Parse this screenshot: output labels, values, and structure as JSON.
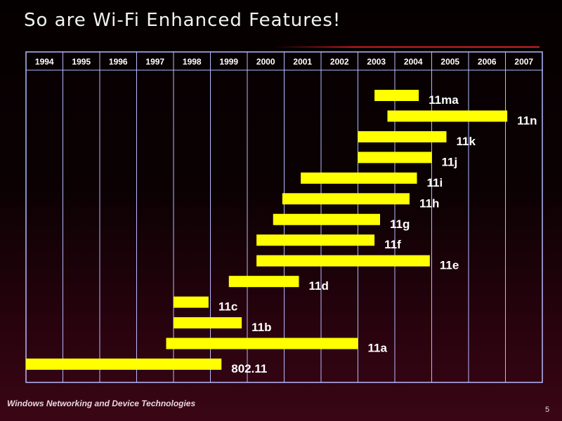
{
  "slide": {
    "title": "So are Wi-Fi Enhanced Features!",
    "footer": "Windows Networking and Device Technologies",
    "slide_number": "5"
  },
  "colors": {
    "bar": "#ffff00",
    "grid": "#b8b8ff",
    "accent": "#c81a1a"
  },
  "chart_data": {
    "type": "bar",
    "orientation": "horizontal-timeline",
    "years": [
      "1994",
      "1995",
      "1996",
      "1997",
      "1998",
      "1999",
      "2000",
      "2001",
      "2002",
      "2003",
      "2004",
      "2005",
      "2006",
      "2007"
    ],
    "xlim": [
      1994,
      2008
    ],
    "grid": true,
    "series": [
      {
        "label": "11ma",
        "start": 2003.45,
        "end": 2004.65
      },
      {
        "label": "11n",
        "start": 2003.8,
        "end": 2007.05
      },
      {
        "label": "11k",
        "start": 2003.0,
        "end": 2005.4
      },
      {
        "label": "11j",
        "start": 2003.0,
        "end": 2005.0
      },
      {
        "label": "11i",
        "start": 2001.45,
        "end": 2004.6
      },
      {
        "label": "11h",
        "start": 2000.95,
        "end": 2004.4
      },
      {
        "label": "11g",
        "start": 2000.7,
        "end": 2003.6
      },
      {
        "label": "11f",
        "start": 2000.25,
        "end": 2003.45
      },
      {
        "label": "11e",
        "start": 2000.25,
        "end": 2004.95
      },
      {
        "label": "11d",
        "start": 1999.5,
        "end": 2001.4
      },
      {
        "label": "11c",
        "start": 1998.0,
        "end": 1998.95
      },
      {
        "label": "11b",
        "start": 1998.0,
        "end": 1999.85
      },
      {
        "label": "11a",
        "start": 1997.8,
        "end": 2003.0
      },
      {
        "label": "802.11",
        "start": 1994.0,
        "end": 1999.3
      }
    ]
  }
}
